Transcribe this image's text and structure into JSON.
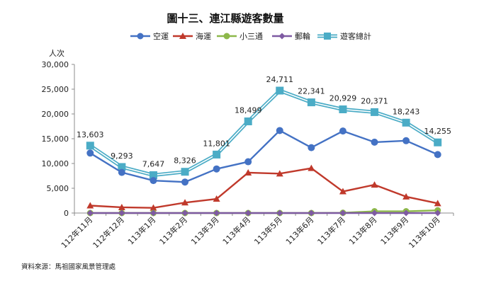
{
  "chart_data": {
    "type": "line",
    "title": "圖十三、連江縣遊客數量",
    "ylabel": "人次",
    "xlabel": "",
    "source": "資料來源：馬祖國家風景管理處",
    "ylim": [
      0,
      30000
    ],
    "yticks": [
      "0",
      "5,000",
      "10,000",
      "15,000",
      "20,000",
      "25,000",
      "30,000"
    ],
    "ytick_values": [
      0,
      5000,
      10000,
      15000,
      20000,
      25000,
      30000
    ],
    "grid": false,
    "legend_position": "top",
    "categories": [
      "112年11月",
      "112年12月",
      "113年1月",
      "113年2月",
      "113年3月",
      "113年4月",
      "113年5月",
      "113年6月",
      "113年7月",
      "113年8月",
      "113年9月",
      "113年10月"
    ],
    "series": [
      {
        "name": "空運",
        "color": "#4472C4",
        "marker": "circle",
        "values": [
          12100,
          8200,
          6550,
          6250,
          8900,
          10350,
          16650,
          13200,
          16550,
          14300,
          14600,
          11800
        ]
      },
      {
        "name": "海運",
        "color": "#C0392B",
        "marker": "triangle",
        "values": [
          1500,
          1150,
          1050,
          2100,
          2850,
          8150,
          7950,
          9050,
          4350,
          5700,
          3300,
          1950
        ]
      },
      {
        "name": "小三通",
        "color": "#8DB84A",
        "marker": "circle",
        "values": [
          0,
          0,
          0,
          0,
          0,
          0,
          0,
          0,
          50,
          350,
          350,
          550
        ]
      },
      {
        "name": "郵輪",
        "color": "#7E5AA2",
        "marker": "diamond",
        "values": [
          0,
          0,
          0,
          0,
          0,
          0,
          0,
          0,
          0,
          0,
          0,
          0
        ]
      },
      {
        "name": "遊客總計",
        "color": "#4BACC6",
        "marker": "square",
        "double_line": true,
        "values": [
          13603,
          9293,
          7647,
          8326,
          11801,
          18499,
          24711,
          22341,
          20929,
          20371,
          18243,
          14255
        ],
        "labels": [
          "13,603",
          "9,293",
          "7,647",
          "8,326",
          "11,801",
          "18,499",
          "24,711",
          "22,341",
          "20,929",
          "20,371",
          "18,243",
          "14,255"
        ]
      }
    ]
  }
}
